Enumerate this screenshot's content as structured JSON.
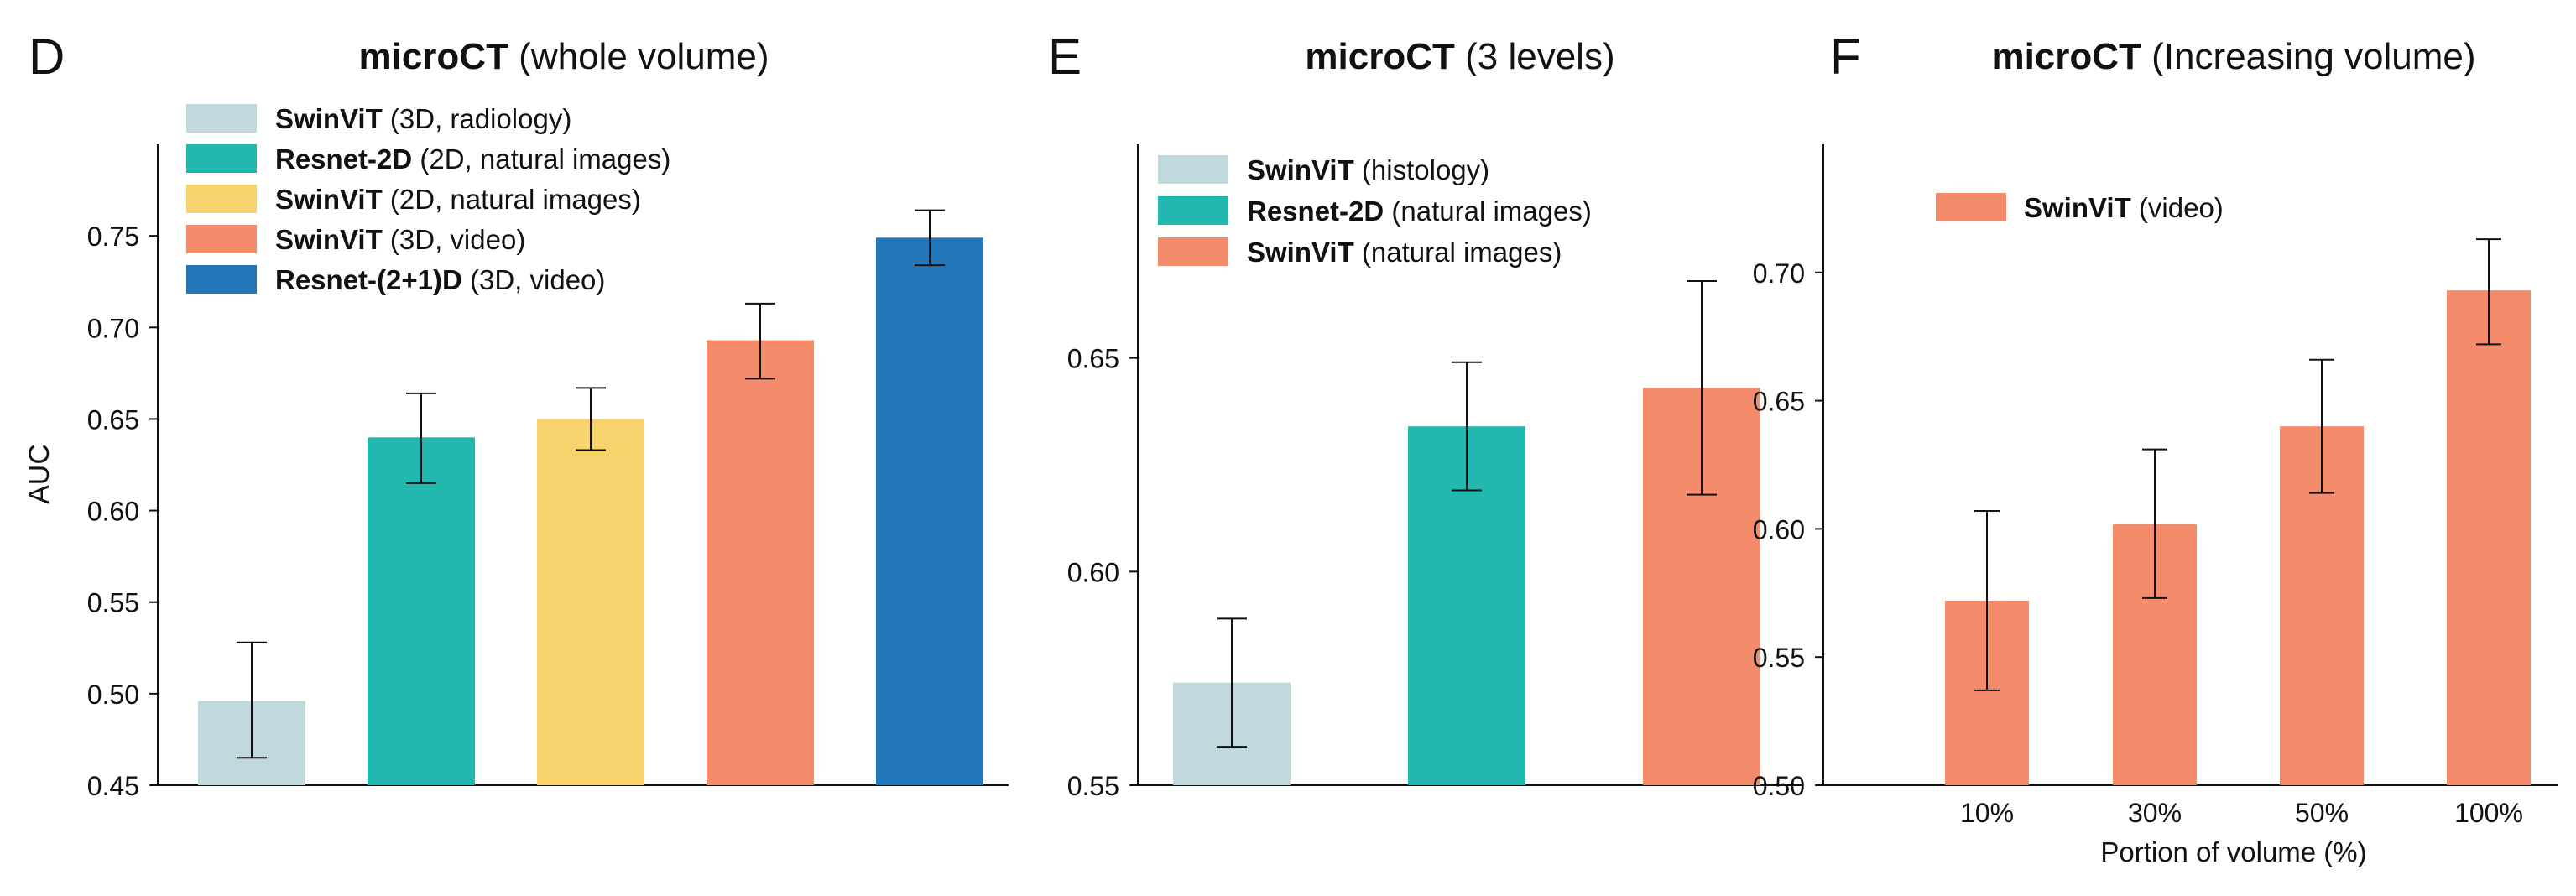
{
  "panels": [
    {
      "letter": "D",
      "title_bold": "microCT",
      "title_rest": " (whole volume)"
    },
    {
      "letter": "E",
      "title_bold": "microCT",
      "title_rest": " (3 levels)"
    },
    {
      "letter": "F",
      "title_bold": "microCT",
      "title_rest": " (Increasing volume)"
    }
  ],
  "chart_data": [
    {
      "type": "bar",
      "title": "microCT (whole volume)",
      "xlabel": "",
      "ylabel": "AUC",
      "ylim": [
        0.45,
        0.8
      ],
      "yticks": [
        "0.45",
        "0.50",
        "0.55",
        "0.60",
        "0.65",
        "0.70",
        "0.75"
      ],
      "categories": [],
      "legend_position": "top-left",
      "series": [
        {
          "name_bold": "SwinViT",
          "name_rest": " (3D, radiology)",
          "value": 0.496,
          "err_low": 0.465,
          "err_high": 0.528,
          "color": "#c1d8dc"
        },
        {
          "name_bold": "Resnet-2D",
          "name_rest": "  (2D, natural images)",
          "value": 0.64,
          "err_low": 0.615,
          "err_high": 0.664,
          "color": "#22b8b0"
        },
        {
          "name_bold": "SwinViT",
          "name_rest": " (2D, natural images)",
          "value": 0.65,
          "err_low": 0.633,
          "err_high": 0.667,
          "color": "#f8d36b"
        },
        {
          "name_bold": "SwinViT",
          "name_rest": " (3D, video)",
          "value": 0.693,
          "err_low": 0.672,
          "err_high": 0.713,
          "color": "#f48b6a"
        },
        {
          "name_bold": "Resnet-(2+1)D",
          "name_rest": "  (3D, video)",
          "value": 0.749,
          "err_low": 0.734,
          "err_high": 0.764,
          "color": "#2277bb"
        }
      ]
    },
    {
      "type": "bar",
      "title": "microCT (3 levels)",
      "xlabel": "",
      "ylabel": "",
      "ylim": [
        0.55,
        0.7
      ],
      "yticks": [
        "0.55",
        "0.60",
        "0.65"
      ],
      "categories": [],
      "legend_position": "top-left",
      "series": [
        {
          "name_bold": "SwinViT",
          "name_rest": " (histology)",
          "value": 0.574,
          "err_low": 0.559,
          "err_high": 0.589,
          "color": "#c1d8dc"
        },
        {
          "name_bold": "Resnet-2D",
          "name_rest": "  (natural images)",
          "value": 0.634,
          "err_low": 0.619,
          "err_high": 0.649,
          "color": "#22b8b0"
        },
        {
          "name_bold": "SwinViT",
          "name_rest": "  (natural images)",
          "value": 0.643,
          "err_low": 0.618,
          "err_high": 0.668,
          "color": "#f48b6a"
        }
      ]
    },
    {
      "type": "bar",
      "title": "microCT (Increasing volume)",
      "xlabel": "Portion of volume (%)",
      "ylabel": "",
      "ylim": [
        0.5,
        0.75
      ],
      "yticks": [
        "0.50",
        "0.55",
        "0.60",
        "0.65",
        "0.70"
      ],
      "categories": [
        "10%",
        "30%",
        "50%",
        "100%"
      ],
      "legend_position": "top-left",
      "legend": {
        "name_bold": "SwinViT",
        "name_rest": " (video)",
        "color": "#f48b6a"
      },
      "series": [
        {
          "name": "SwinViT (video)",
          "color": "#f48b6a",
          "values": [
            0.572,
            0.602,
            0.64,
            0.693
          ],
          "err_low": [
            0.537,
            0.573,
            0.614,
            0.672
          ],
          "err_high": [
            0.607,
            0.631,
            0.666,
            0.713
          ]
        }
      ]
    }
  ]
}
